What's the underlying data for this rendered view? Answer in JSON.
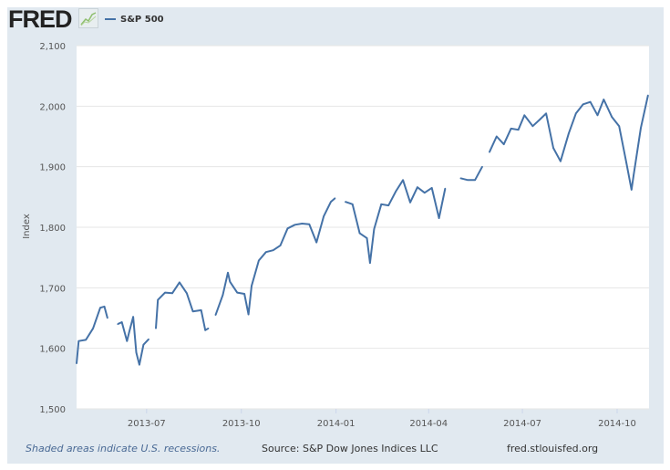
{
  "header": {
    "logo": "FRED",
    "legend_label": "S&P 500"
  },
  "footer": {
    "note": "Shaded areas indicate U.S. recessions.",
    "source": "Source: S&P Dow Jones Indices LLC",
    "site": "fred.stlouisfed.org"
  },
  "colors": {
    "series": "#4572a7",
    "background": "#e1e9f0",
    "plot": "#ffffff"
  },
  "chart_data": {
    "type": "line",
    "ylabel": "Index",
    "ylim": [
      1500,
      2100
    ],
    "xlim": [
      "2013-04-24",
      "2014-11-01"
    ],
    "yticks": [
      "1,500",
      "1,600",
      "1,700",
      "1,800",
      "1,900",
      "2,000",
      "2,100"
    ],
    "ytick_values": [
      1500,
      1600,
      1700,
      1800,
      1900,
      2000,
      2100
    ],
    "xticks": [
      "2013-07",
      "2013-10",
      "2014-01",
      "2014-04",
      "2014-07",
      "2014-10"
    ],
    "xtick_dates": [
      "2013-07-01",
      "2013-10-01",
      "2014-01-01",
      "2014-04-01",
      "2014-07-01",
      "2014-10-01"
    ],
    "grid": true,
    "series": [
      {
        "name": "S&P 500",
        "points": [
          [
            "2013-04-24",
            1575
          ],
          [
            "2013-04-26",
            1612
          ],
          [
            "2013-05-03",
            1614
          ],
          [
            "2013-05-10",
            1633
          ],
          [
            "2013-05-17",
            1667
          ],
          [
            "2013-05-21",
            1669
          ],
          [
            "2013-05-24",
            1650
          ],
          [
            "2013-05-28",
            null
          ],
          [
            "2013-06-03",
            1640
          ],
          [
            "2013-06-07",
            1643
          ],
          [
            "2013-06-12",
            1612
          ],
          [
            "2013-06-14",
            1626
          ],
          [
            "2013-06-18",
            1652
          ],
          [
            "2013-06-21",
            1593
          ],
          [
            "2013-06-24",
            1573
          ],
          [
            "2013-06-28",
            1606
          ],
          [
            "2013-07-03",
            1615
          ],
          [
            "2013-07-05",
            null
          ],
          [
            "2013-07-10",
            1633
          ],
          [
            "2013-07-12",
            1680
          ],
          [
            "2013-07-19",
            1692
          ],
          [
            "2013-07-26",
            1691
          ],
          [
            "2013-08-02",
            1709
          ],
          [
            "2013-08-09",
            1691
          ],
          [
            "2013-08-15",
            1661
          ],
          [
            "2013-08-23",
            1663
          ],
          [
            "2013-08-27",
            1630
          ],
          [
            "2013-08-30",
            1633
          ],
          [
            "2013-09-03",
            null
          ],
          [
            "2013-09-06",
            1655
          ],
          [
            "2013-09-13",
            1688
          ],
          [
            "2013-09-18",
            1725
          ],
          [
            "2013-09-20",
            1710
          ],
          [
            "2013-09-27",
            1692
          ],
          [
            "2013-10-04",
            1690
          ],
          [
            "2013-10-08",
            1656
          ],
          [
            "2013-10-11",
            1703
          ],
          [
            "2013-10-18",
            1745
          ],
          [
            "2013-10-25",
            1759
          ],
          [
            "2013-11-01",
            1762
          ],
          [
            "2013-11-08",
            1770
          ],
          [
            "2013-11-15",
            1798
          ],
          [
            "2013-11-22",
            1804
          ],
          [
            "2013-11-29",
            1806
          ],
          [
            "2013-12-06",
            1805
          ],
          [
            "2013-12-13",
            1775
          ],
          [
            "2013-12-20",
            1818
          ],
          [
            "2013-12-27",
            1842
          ],
          [
            "2013-12-31",
            1848
          ],
          [
            "2014-01-03",
            null
          ],
          [
            "2014-01-10",
            1842
          ],
          [
            "2014-01-17",
            1838
          ],
          [
            "2014-01-24",
            1790
          ],
          [
            "2014-01-31",
            1782
          ],
          [
            "2014-02-03",
            1741
          ],
          [
            "2014-02-07",
            1797
          ],
          [
            "2014-02-14",
            1838
          ],
          [
            "2014-02-21",
            1836
          ],
          [
            "2014-02-28",
            1859
          ],
          [
            "2014-03-07",
            1878
          ],
          [
            "2014-03-14",
            1841
          ],
          [
            "2014-03-21",
            1866
          ],
          [
            "2014-03-28",
            1857
          ],
          [
            "2014-04-04",
            1865
          ],
          [
            "2014-04-11",
            1815
          ],
          [
            "2014-04-17",
            1864
          ],
          [
            "2014-04-25",
            null
          ],
          [
            "2014-05-02",
            1881
          ],
          [
            "2014-05-09",
            1878
          ],
          [
            "2014-05-16",
            1878
          ],
          [
            "2014-05-23",
            1900
          ],
          [
            "2014-05-26",
            null
          ],
          [
            "2014-05-30",
            1924
          ],
          [
            "2014-06-06",
            1950
          ],
          [
            "2014-06-13",
            1937
          ],
          [
            "2014-06-20",
            1963
          ],
          [
            "2014-06-27",
            1961
          ],
          [
            "2014-07-03",
            1985
          ],
          [
            "2014-07-11",
            1967
          ],
          [
            "2014-07-18",
            1978
          ],
          [
            "2014-07-24",
            1988
          ],
          [
            "2014-07-31",
            1931
          ],
          [
            "2014-08-07",
            1909
          ],
          [
            "2014-08-15",
            1955
          ],
          [
            "2014-08-22",
            1988
          ],
          [
            "2014-08-29",
            2003
          ],
          [
            "2014-09-05",
            2007
          ],
          [
            "2014-09-12",
            1985
          ],
          [
            "2014-09-18",
            2011
          ],
          [
            "2014-09-26",
            1982
          ],
          [
            "2014-10-03",
            1967
          ],
          [
            "2014-10-10",
            1906
          ],
          [
            "2014-10-15",
            1862
          ],
          [
            "2014-10-17",
            1886
          ],
          [
            "2014-10-24",
            1964
          ],
          [
            "2014-10-31",
            2018
          ]
        ]
      }
    ]
  }
}
